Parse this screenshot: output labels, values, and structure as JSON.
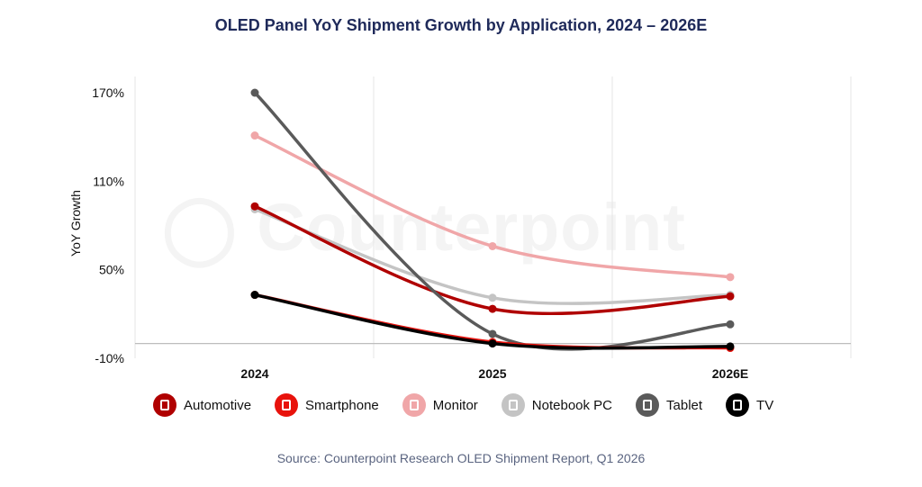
{
  "chart_data": {
    "type": "line",
    "title": "OLED Panel YoY Shipment Growth by Application, 2024 – 2026E",
    "ylabel": "YoY Growth",
    "xlabel": "",
    "categories": [
      "2024",
      "2025",
      "2026E"
    ],
    "ylim": [
      -10,
      170
    ],
    "yticks": [
      "170%",
      "110%",
      "50%",
      "-10%"
    ],
    "ytick_values": [
      170,
      110,
      50,
      -10
    ],
    "grid": "vertical",
    "legend_position": "bottom",
    "series": [
      {
        "name": "Automotive",
        "color": "#b00000",
        "icon": "car-icon",
        "values": [
          93,
          23.5,
          32
        ]
      },
      {
        "name": "Smartphone",
        "color": "#e8120c",
        "icon": "smartphone-icon",
        "values": [
          33,
          1,
          -3
        ]
      },
      {
        "name": "Monitor",
        "color": "#f0a6a8",
        "icon": "monitor-icon",
        "values": [
          141,
          66,
          45
        ]
      },
      {
        "name": "Notebook PC",
        "color": "#c4c4c4",
        "icon": "laptop-icon",
        "values": [
          91,
          31,
          33
        ]
      },
      {
        "name": "Tablet",
        "color": "#5a5a5a",
        "icon": "tablet-icon",
        "values": [
          170,
          6.5,
          13
        ]
      },
      {
        "name": "TV",
        "color": "#000000",
        "icon": "tv-icon",
        "values": [
          33,
          0,
          -2
        ]
      }
    ]
  },
  "watermark": "Counterpoint",
  "source": "Source: Counterpoint Research OLED Shipment Report, Q1 2026"
}
